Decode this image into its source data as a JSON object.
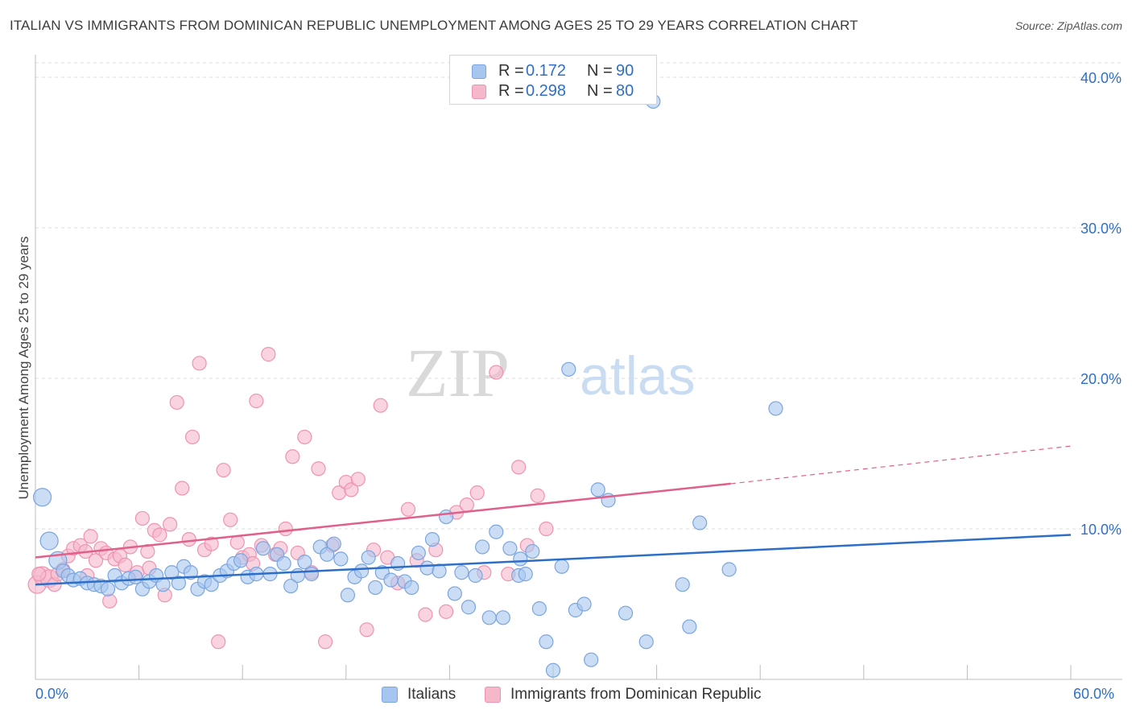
{
  "title": "ITALIAN VS IMMIGRANTS FROM DOMINICAN REPUBLIC UNEMPLOYMENT AMONG AGES 25 TO 29 YEARS CORRELATION CHART",
  "source": "Source: ZipAtlas.com",
  "watermark": {
    "zip": "ZIP",
    "atlas": "atlas"
  },
  "legend_top": [
    {
      "r_label": "R =",
      "r_value": "0.172",
      "n_label": "N =",
      "n_value": "90"
    },
    {
      "r_label": "R =",
      "r_value": "0.298",
      "n_label": "N =",
      "n_value": "80"
    }
  ],
  "legend_bottom": [
    "Italians",
    "Immigrants from Dominican Republic"
  ],
  "colors": {
    "blue_fill": "#a7c6ef",
    "blue_stroke": "#7aa5df",
    "blue_line": "#2d6ec9",
    "pink_fill": "#f5b8cb",
    "pink_stroke": "#ef93b0",
    "pink_line": "#e0608a",
    "tick_text": "#2f6fc6",
    "grid": "#dedede"
  },
  "chart_data": {
    "type": "scatter",
    "title": "ITALIAN VS IMMIGRANTS FROM DOMINICAN REPUBLIC UNEMPLOYMENT AMONG AGES 25 TO 29 YEARS CORRELATION CHART",
    "xlabel": "",
    "ylabel": "Unemployment Among Ages 25 to 29 years",
    "xlim": [
      0,
      60
    ],
    "ylim": [
      0,
      41.5
    ],
    "x_tick_labels": [
      "0.0%",
      "60.0%"
    ],
    "y_ticks": [
      10,
      20,
      30,
      40
    ],
    "y_tick_labels": [
      "10.0%",
      "20.0%",
      "30.0%",
      "40.0%"
    ],
    "grid": "horizontal dashed",
    "legend_placement": "top-center",
    "series": [
      {
        "name": "Italians",
        "color": "#a7c6ef",
        "r": 0.172,
        "n": 90,
        "trend": {
          "x": [
            0,
            60
          ],
          "y": [
            6.3,
            9.6
          ]
        },
        "points": [
          [
            0.4,
            12.1
          ],
          [
            0.8,
            9.2
          ],
          [
            1.3,
            7.9
          ],
          [
            1.6,
            7.2
          ],
          [
            1.9,
            6.9
          ],
          [
            2.2,
            6.6
          ],
          [
            2.6,
            6.7
          ],
          [
            3.0,
            6.4
          ],
          [
            3.4,
            6.3
          ],
          [
            3.8,
            6.2
          ],
          [
            4.2,
            6.0
          ],
          [
            4.6,
            6.9
          ],
          [
            5.0,
            6.4
          ],
          [
            5.4,
            6.7
          ],
          [
            5.8,
            6.8
          ],
          [
            6.2,
            6.0
          ],
          [
            6.6,
            6.5
          ],
          [
            7.0,
            6.9
          ],
          [
            7.4,
            6.3
          ],
          [
            7.9,
            7.1
          ],
          [
            8.3,
            6.4
          ],
          [
            8.6,
            7.5
          ],
          [
            9.0,
            7.1
          ],
          [
            9.4,
            6.0
          ],
          [
            9.8,
            6.5
          ],
          [
            10.2,
            6.3
          ],
          [
            10.7,
            6.9
          ],
          [
            11.1,
            7.2
          ],
          [
            11.5,
            7.7
          ],
          [
            11.9,
            7.9
          ],
          [
            12.3,
            6.8
          ],
          [
            12.8,
            7.0
          ],
          [
            13.2,
            8.7
          ],
          [
            13.6,
            7.0
          ],
          [
            14.0,
            8.3
          ],
          [
            14.4,
            7.7
          ],
          [
            14.8,
            6.2
          ],
          [
            15.2,
            6.9
          ],
          [
            15.6,
            7.8
          ],
          [
            16.0,
            7.0
          ],
          [
            16.5,
            8.8
          ],
          [
            16.9,
            8.3
          ],
          [
            17.3,
            9.0
          ],
          [
            17.7,
            8.0
          ],
          [
            18.1,
            5.6
          ],
          [
            18.5,
            6.8
          ],
          [
            18.9,
            7.2
          ],
          [
            19.3,
            8.1
          ],
          [
            19.7,
            6.1
          ],
          [
            20.1,
            7.1
          ],
          [
            20.6,
            6.6
          ],
          [
            21.0,
            7.7
          ],
          [
            21.4,
            6.5
          ],
          [
            21.8,
            6.1
          ],
          [
            22.2,
            8.4
          ],
          [
            22.7,
            7.4
          ],
          [
            23.0,
            9.3
          ],
          [
            23.4,
            7.2
          ],
          [
            23.8,
            10.8
          ],
          [
            24.3,
            5.7
          ],
          [
            24.7,
            7.1
          ],
          [
            25.1,
            4.8
          ],
          [
            25.5,
            6.9
          ],
          [
            25.9,
            8.8
          ],
          [
            26.3,
            4.1
          ],
          [
            26.7,
            9.8
          ],
          [
            27.1,
            4.1
          ],
          [
            27.5,
            8.7
          ],
          [
            28.0,
            6.9
          ],
          [
            28.4,
            7.0
          ],
          [
            28.8,
            8.5
          ],
          [
            29.2,
            4.7
          ],
          [
            29.6,
            2.5
          ],
          [
            30.0,
            0.6
          ],
          [
            30.5,
            7.5
          ],
          [
            30.9,
            20.6
          ],
          [
            31.3,
            4.6
          ],
          [
            31.8,
            5.0
          ],
          [
            32.2,
            1.3
          ],
          [
            32.6,
            12.6
          ],
          [
            33.2,
            11.9
          ],
          [
            34.2,
            4.4
          ],
          [
            35.4,
            2.5
          ],
          [
            35.8,
            38.4
          ],
          [
            37.5,
            6.3
          ],
          [
            37.9,
            3.5
          ],
          [
            38.5,
            10.4
          ],
          [
            42.9,
            18.0
          ],
          [
            28.1,
            8.0
          ],
          [
            40.2,
            7.3
          ]
        ]
      },
      {
        "name": "Immigrants from Dominican Republic",
        "color": "#f5b8cb",
        "r": 0.298,
        "n": 80,
        "trend": {
          "x": [
            0,
            40.3
          ],
          "y": [
            8.1,
            13.0
          ]
        },
        "trend_dashed": {
          "x": [
            40.3,
            60
          ],
          "y": [
            13.0,
            15.5
          ]
        },
        "points": [
          [
            0.1,
            6.3
          ],
          [
            0.4,
            6.9
          ],
          [
            0.8,
            6.7
          ],
          [
            1.1,
            6.3
          ],
          [
            1.3,
            7.0
          ],
          [
            1.6,
            7.3
          ],
          [
            1.9,
            8.2
          ],
          [
            2.2,
            8.7
          ],
          [
            2.6,
            8.9
          ],
          [
            2.9,
            8.5
          ],
          [
            3.2,
            9.5
          ],
          [
            3.5,
            7.9
          ],
          [
            3.8,
            8.7
          ],
          [
            4.1,
            8.4
          ],
          [
            4.3,
            5.2
          ],
          [
            4.6,
            8.0
          ],
          [
            4.9,
            8.2
          ],
          [
            5.2,
            7.6
          ],
          [
            5.5,
            8.8
          ],
          [
            5.9,
            7.1
          ],
          [
            6.2,
            10.7
          ],
          [
            6.5,
            8.5
          ],
          [
            6.9,
            9.9
          ],
          [
            7.2,
            9.6
          ],
          [
            7.5,
            5.6
          ],
          [
            7.8,
            10.3
          ],
          [
            8.2,
            18.4
          ],
          [
            8.5,
            12.7
          ],
          [
            8.9,
            9.3
          ],
          [
            9.1,
            16.1
          ],
          [
            9.5,
            21.0
          ],
          [
            9.8,
            8.6
          ],
          [
            10.2,
            9.0
          ],
          [
            10.6,
            2.5
          ],
          [
            10.9,
            13.9
          ],
          [
            11.3,
            10.6
          ],
          [
            11.7,
            9.1
          ],
          [
            12.0,
            8.1
          ],
          [
            12.4,
            8.3
          ],
          [
            12.8,
            18.5
          ],
          [
            13.1,
            8.9
          ],
          [
            13.5,
            21.6
          ],
          [
            13.9,
            8.3
          ],
          [
            14.2,
            8.7
          ],
          [
            14.5,
            10.0
          ],
          [
            14.9,
            14.8
          ],
          [
            15.2,
            8.4
          ],
          [
            15.6,
            16.1
          ],
          [
            16.0,
            7.1
          ],
          [
            16.4,
            14.0
          ],
          [
            16.8,
            2.5
          ],
          [
            17.2,
            8.9
          ],
          [
            17.6,
            12.4
          ],
          [
            18.0,
            13.1
          ],
          [
            18.3,
            12.6
          ],
          [
            18.7,
            13.3
          ],
          [
            19.2,
            3.3
          ],
          [
            19.6,
            8.6
          ],
          [
            20.0,
            18.2
          ],
          [
            20.4,
            8.1
          ],
          [
            21.0,
            6.4
          ],
          [
            21.6,
            11.3
          ],
          [
            22.1,
            7.9
          ],
          [
            22.6,
            4.3
          ],
          [
            23.2,
            8.6
          ],
          [
            23.8,
            4.5
          ],
          [
            24.4,
            11.1
          ],
          [
            25.0,
            11.6
          ],
          [
            25.6,
            12.4
          ],
          [
            26.0,
            7.1
          ],
          [
            26.7,
            20.4
          ],
          [
            27.4,
            7.0
          ],
          [
            28.0,
            14.1
          ],
          [
            28.5,
            8.9
          ],
          [
            29.1,
            12.2
          ],
          [
            29.6,
            10.0
          ],
          [
            3.0,
            6.9
          ],
          [
            6.6,
            7.4
          ],
          [
            12.6,
            7.7
          ],
          [
            0.2,
            7.0
          ]
        ]
      }
    ]
  }
}
